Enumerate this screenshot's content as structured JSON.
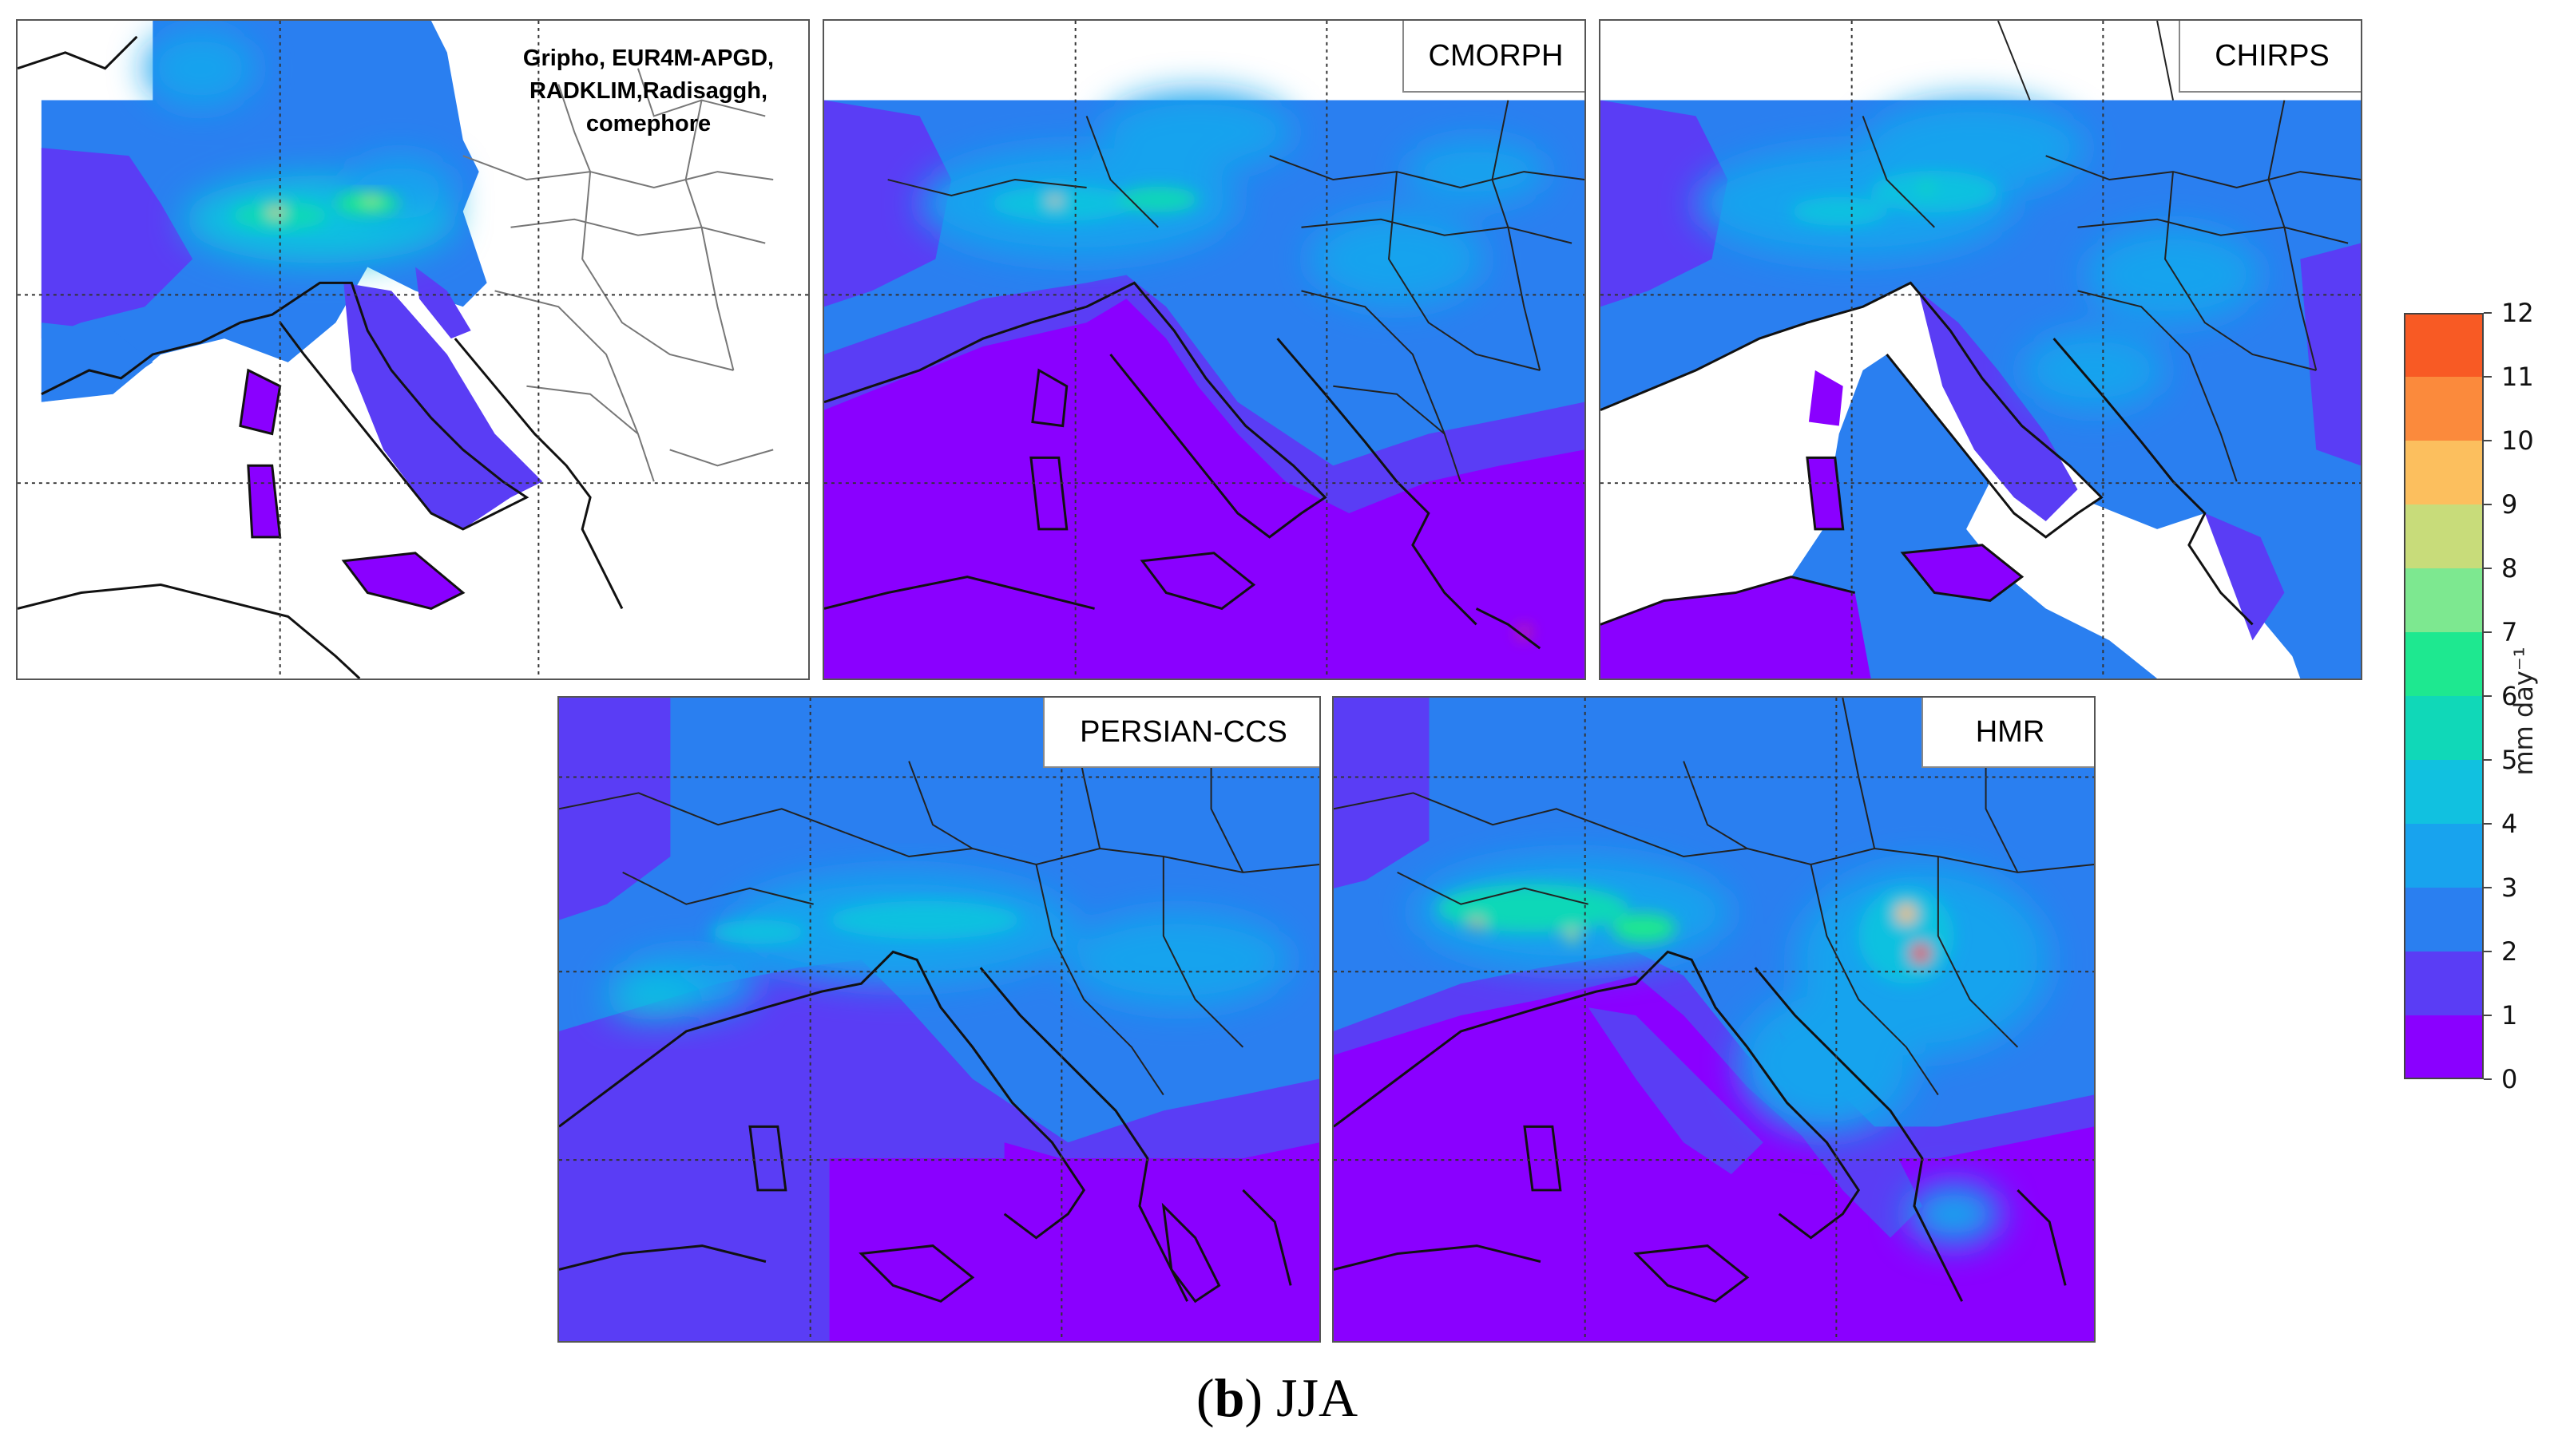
{
  "panels": {
    "obs": {
      "label_lines": [
        "Gripho, EUR4M-APGD,",
        "RADKLIM,Radisaggh,",
        "comephore"
      ]
    },
    "cmorph": {
      "label": "CMORPH"
    },
    "chirps": {
      "label": "CHIRPS"
    },
    "persian": {
      "label": "PERSIAN-CCS"
    },
    "hmr": {
      "label": "HMR"
    }
  },
  "colorbar": {
    "unit": "mm day⁻¹",
    "ticks": [
      "0",
      "1",
      "2",
      "3",
      "4",
      "5",
      "6",
      "7",
      "8",
      "9",
      "10",
      "11",
      "12"
    ],
    "colors": [
      "#8a00ff",
      "#5a3df5",
      "#2a7ff0",
      "#18a3ee",
      "#11c1e0",
      "#10d8b8",
      "#1ee890",
      "#7de890",
      "#c8dc7a",
      "#fcbf5e",
      "#fb8a3c",
      "#f85a24",
      "#f21d10"
    ]
  },
  "caption": {
    "bold_part": "b",
    "rest": " JJA"
  }
}
